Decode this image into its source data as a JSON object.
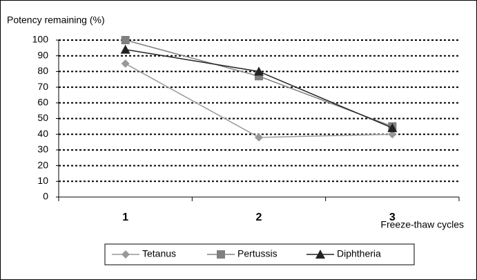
{
  "chart_data": {
    "type": "line",
    "y_label": "Potency remaining (%)",
    "x_label": "Freeze-thaw cycles",
    "categories": [
      "1",
      "2",
      "3"
    ],
    "series": [
      {
        "name": "Tetanus",
        "color": "#999999",
        "marker": "diamond",
        "values": [
          85,
          38,
          40
        ]
      },
      {
        "name": "Pertussis",
        "color": "#808080",
        "marker": "square",
        "values": [
          100,
          77,
          45
        ]
      },
      {
        "name": "Diphtheria",
        "color": "#222222",
        "marker": "triangle",
        "values": [
          94,
          80,
          44
        ]
      }
    ],
    "ylim": [
      0,
      100
    ],
    "yticks": [
      0,
      10,
      20,
      30,
      40,
      50,
      60,
      70,
      80,
      90,
      100
    ],
    "grid": true,
    "legend": "bottom"
  }
}
